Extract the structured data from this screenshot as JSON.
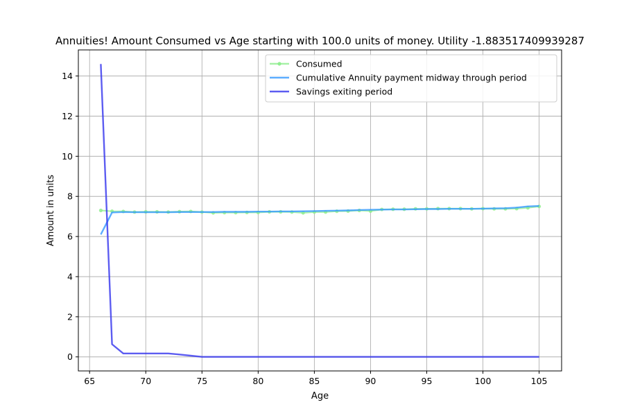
{
  "chart_data": {
    "type": "line",
    "title": "Annuities! Amount Consumed vs Age starting with 100.0 units of money. Utility -1.883517409939287",
    "xlabel": "Age",
    "ylabel": "Amount in units",
    "xlim": [
      64,
      107
    ],
    "ylim": [
      -0.7,
      15.3
    ],
    "xticks": [
      65,
      70,
      75,
      80,
      85,
      90,
      95,
      100,
      105
    ],
    "yticks": [
      0,
      2,
      4,
      6,
      8,
      10,
      12,
      14
    ],
    "grid": true,
    "legend_position": "top-right",
    "x": [
      66,
      67,
      68,
      69,
      70,
      71,
      72,
      73,
      74,
      75,
      76,
      77,
      78,
      79,
      80,
      81,
      82,
      83,
      84,
      85,
      86,
      87,
      88,
      89,
      90,
      91,
      92,
      93,
      94,
      95,
      96,
      97,
      98,
      99,
      100,
      101,
      102,
      103,
      104,
      105
    ],
    "series": [
      {
        "name": "Consumed",
        "color": "#90ee90",
        "marker": "dot",
        "values": [
          7.3,
          7.26,
          7.25,
          7.22,
          7.23,
          7.23,
          7.22,
          7.24,
          7.25,
          7.22,
          7.18,
          7.19,
          7.19,
          7.2,
          7.2,
          7.23,
          7.23,
          7.22,
          7.18,
          7.22,
          7.22,
          7.26,
          7.27,
          7.3,
          7.27,
          7.35,
          7.36,
          7.36,
          7.38,
          7.38,
          7.39,
          7.39,
          7.39,
          7.38,
          7.39,
          7.38,
          7.38,
          7.39,
          7.43,
          7.5
        ]
      },
      {
        "name": "Cumulative Annuity payment midway through period",
        "color": "#3399ff",
        "marker": "none",
        "values": [
          6.1,
          7.2,
          7.22,
          7.21,
          7.21,
          7.21,
          7.21,
          7.22,
          7.22,
          7.22,
          7.22,
          7.23,
          7.23,
          7.23,
          7.24,
          7.24,
          7.25,
          7.25,
          7.26,
          7.27,
          7.28,
          7.29,
          7.3,
          7.32,
          7.33,
          7.34,
          7.35,
          7.35,
          7.36,
          7.37,
          7.37,
          7.38,
          7.38,
          7.38,
          7.39,
          7.4,
          7.41,
          7.44,
          7.5,
          7.52
        ]
      },
      {
        "name": "Savings exiting period",
        "color": "#3333ee",
        "marker": "none",
        "values": [
          14.6,
          0.63,
          0.17,
          0.17,
          0.17,
          0.17,
          0.17,
          0.12,
          0.06,
          0.0,
          0,
          0,
          0,
          0,
          0,
          0,
          0,
          0,
          0,
          0,
          0,
          0,
          0,
          0,
          0,
          0,
          0,
          0,
          0,
          0,
          0,
          0,
          0,
          0,
          0,
          0,
          0,
          0,
          0,
          0
        ]
      }
    ]
  }
}
